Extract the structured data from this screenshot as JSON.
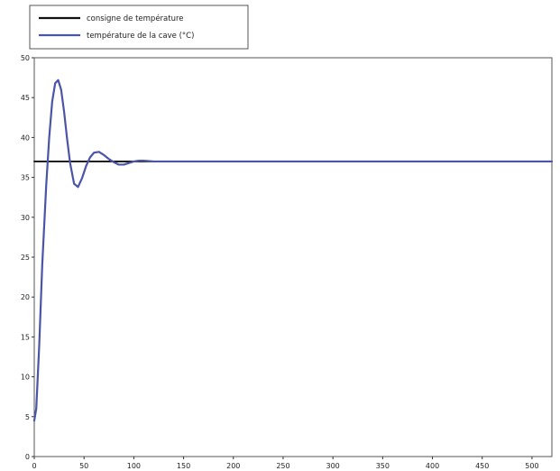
{
  "chart_data": {
    "type": "line",
    "title": "",
    "xlabel": "",
    "ylabel": "",
    "xlim": [
      0,
      520
    ],
    "ylim": [
      0,
      50
    ],
    "x_ticks": [
      0,
      50,
      100,
      150,
      200,
      250,
      300,
      350,
      400,
      450,
      500
    ],
    "y_ticks": [
      0,
      5,
      10,
      15,
      20,
      25,
      30,
      35,
      40,
      45,
      50
    ],
    "grid": true,
    "grid_style": "dashed",
    "legend_position": "top-left",
    "legend": [
      "consigne de température",
      "température de la cave (°C)"
    ],
    "series": [
      {
        "name": "consigne de température",
        "color": "#111111",
        "x": [
          0,
          520
        ],
        "y": [
          37,
          37
        ]
      },
      {
        "name": "température de la cave (°C)",
        "color": "#4a55a8",
        "x": [
          0,
          2,
          5,
          8,
          12,
          15,
          18,
          21,
          24,
          27,
          30,
          33,
          36,
          40,
          44,
          48,
          52,
          56,
          60,
          65,
          70,
          75,
          80,
          85,
          90,
          95,
          100,
          105,
          110,
          120,
          140,
          160,
          200,
          300,
          400,
          520
        ],
        "y": [
          4.5,
          6,
          14,
          24,
          34,
          40,
          44.5,
          46.8,
          47.2,
          46,
          43.2,
          39.8,
          36.8,
          34.2,
          33.8,
          34.9,
          36.4,
          37.5,
          38.1,
          38.2,
          37.8,
          37.3,
          36.9,
          36.6,
          36.6,
          36.8,
          37,
          37.1,
          37.1,
          37,
          37,
          37,
          37,
          37,
          37,
          37
        ]
      }
    ]
  }
}
